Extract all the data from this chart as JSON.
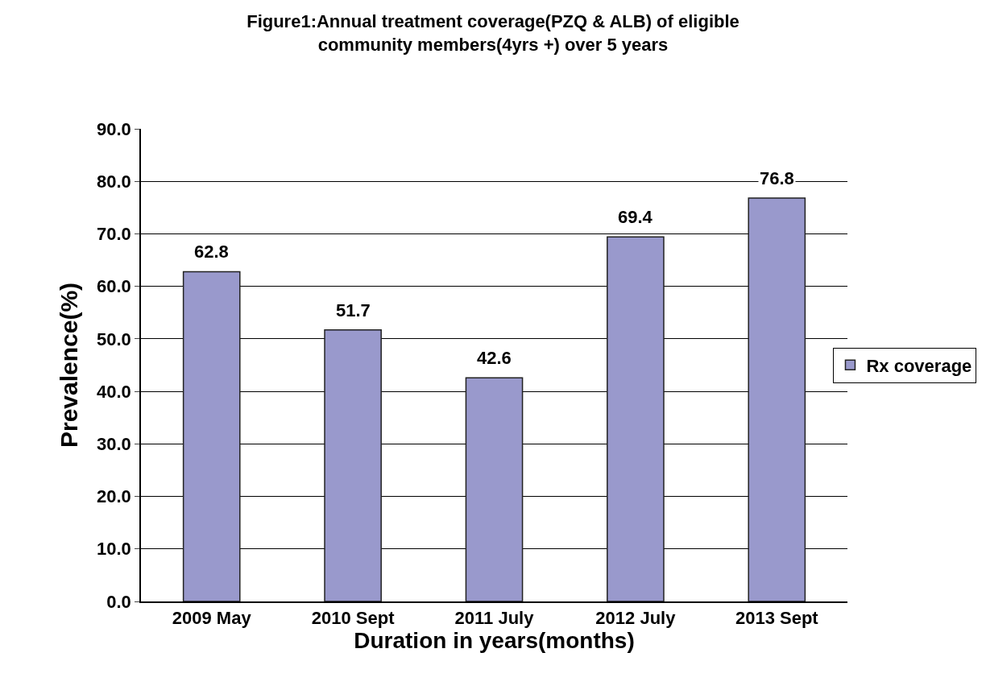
{
  "chart_data": {
    "type": "bar",
    "title": "Figure1:Annual treatment coverage(PZQ & ALB) of eligible community members(4yrs +) over 5 years",
    "xlabel": "Duration in years(months)",
    "ylabel": "Prevalence(%)",
    "categories": [
      "2009 May",
      "2010 Sept",
      "2011 July",
      "2012 July",
      "2013 Sept"
    ],
    "series": [
      {
        "name": "Rx coverage",
        "color": "#9999cc",
        "values": [
          62.8,
          51.7,
          42.6,
          69.4,
          76.8
        ]
      }
    ],
    "ylim": [
      0,
      90
    ],
    "yticks": [
      {
        "value": 0,
        "label": "0.0"
      },
      {
        "value": 10,
        "label": "10.0"
      },
      {
        "value": 20,
        "label": "20.0"
      },
      {
        "value": 30,
        "label": "30.0"
      },
      {
        "value": 40,
        "label": "40.0"
      },
      {
        "value": 50,
        "label": "50.0"
      },
      {
        "value": 60,
        "label": "60.0"
      },
      {
        "value": 70,
        "label": "70.0"
      },
      {
        "value": 80,
        "label": "80.0"
      },
      {
        "value": 90,
        "label": "90.0"
      }
    ],
    "data_labels": true,
    "grid": "y",
    "legend": "right"
  }
}
